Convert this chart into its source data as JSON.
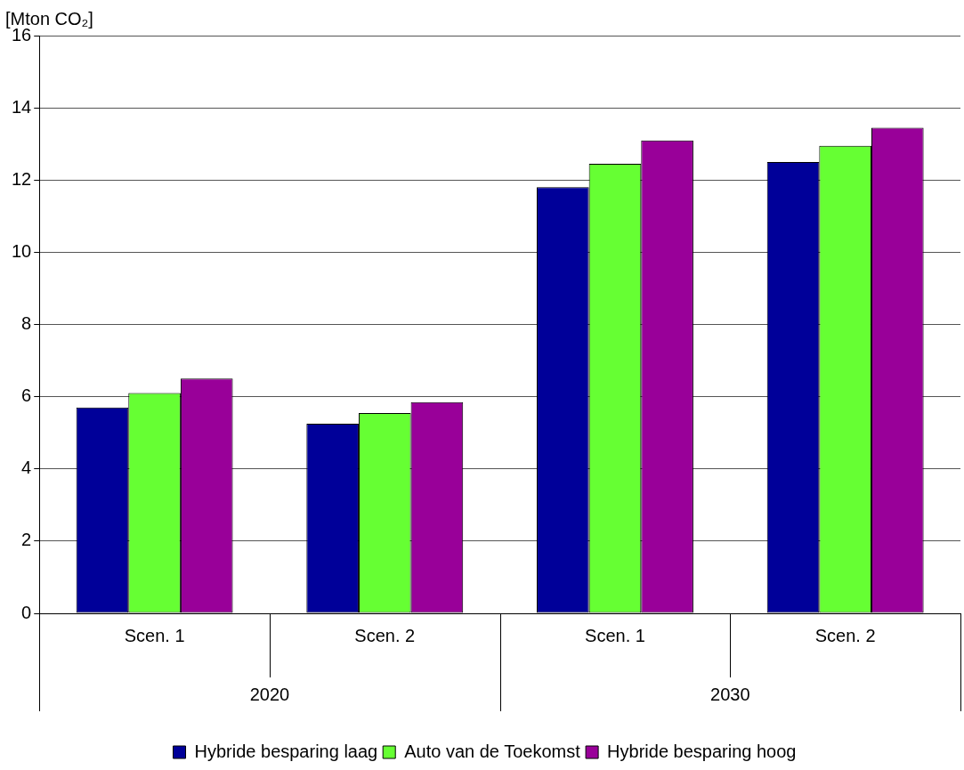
{
  "chart_data": {
    "type": "bar",
    "ylabel": "[Mton CO₂]",
    "categories": [
      "Scen. 1",
      "Scen. 2",
      "Scen. 1",
      "Scen. 2"
    ],
    "annotations": [
      "2020",
      "2030"
    ],
    "series": [
      {
        "name": "Hybride besparing laag",
        "color": "#000099",
        "values": [
          5.7,
          5.25,
          11.8,
          12.5
        ]
      },
      {
        "name": "Auto van de Toekomst",
        "color": "#66ff33",
        "values": [
          6.1,
          5.55,
          12.45,
          12.95
        ]
      },
      {
        "name": "Hybride besparing hoog",
        "color": "#990099",
        "values": [
          6.5,
          5.85,
          13.1,
          13.45
        ]
      }
    ],
    "ylim": [
      0,
      16
    ],
    "yticks": [
      0,
      2,
      4,
      6,
      8,
      10,
      12,
      14,
      16
    ],
    "grid": "y",
    "legend": "bottom"
  }
}
